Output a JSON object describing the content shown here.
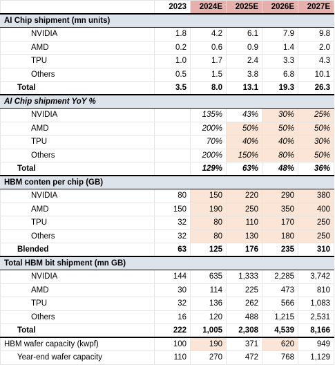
{
  "years": [
    {
      "label": "2023",
      "estimate": false
    },
    {
      "label": "2024E",
      "estimate": true
    },
    {
      "label": "2025E",
      "estimate": true
    },
    {
      "label": "2026E",
      "estimate": true
    },
    {
      "label": "2027E",
      "estimate": true
    }
  ],
  "sections": [
    {
      "title": "AI Chip shipment (mn units)",
      "items": [
        {
          "label": "NVIDIA",
          "values": [
            "1.8",
            "4.2",
            "6.1",
            "7.9",
            "9.8"
          ]
        },
        {
          "label": "AMD",
          "values": [
            "0.2",
            "0.6",
            "0.9",
            "1.4",
            "2.0"
          ]
        },
        {
          "label": "TPU",
          "values": [
            "1.0",
            "1.7",
            "2.4",
            "3.3",
            "4.3"
          ]
        },
        {
          "label": "Others",
          "values": [
            "0.5",
            "1.5",
            "3.8",
            "6.8",
            "10.1"
          ]
        }
      ],
      "total": {
        "label": "Total",
        "values": [
          "3.5",
          "8.0",
          "13.1",
          "19.3",
          "26.3"
        ]
      }
    },
    {
      "title": "AI Chip shipment YoY %",
      "items": [
        {
          "label": "NVIDIA",
          "values": [
            "",
            "135%",
            "43%",
            "30%",
            "25%"
          ]
        },
        {
          "label": "AMD",
          "values": [
            "",
            "200%",
            "50%",
            "50%",
            "50%"
          ]
        },
        {
          "label": "TPU",
          "values": [
            "",
            "70%",
            "40%",
            "40%",
            "30%"
          ]
        },
        {
          "label": "Others",
          "values": [
            "",
            "200%",
            "150%",
            "80%",
            "50%"
          ]
        }
      ],
      "total": {
        "label": "Total",
        "values": [
          "",
          "129%",
          "63%",
          "48%",
          "36%"
        ]
      }
    },
    {
      "title": "HBM conten per chip (GB)",
      "items": [
        {
          "label": "NVIDIA",
          "values": [
            "80",
            "150",
            "220",
            "290",
            "380"
          ]
        },
        {
          "label": "AMD",
          "values": [
            "150",
            "190",
            "250",
            "350",
            "400"
          ]
        },
        {
          "label": "TPU",
          "values": [
            "32",
            "80",
            "110",
            "170",
            "250"
          ]
        },
        {
          "label": "Others",
          "values": [
            "32",
            "80",
            "130",
            "180",
            "250"
          ]
        }
      ],
      "total": {
        "label": "Blended",
        "values": [
          "63",
          "125",
          "176",
          "235",
          "310"
        ]
      }
    },
    {
      "title": "Total HBM bit shipment (mn GB)",
      "items": [
        {
          "label": "NVIDIA",
          "values": [
            "144",
            "635",
            "1,333",
            "2,285",
            "3,742"
          ]
        },
        {
          "label": "AMD",
          "values": [
            "30",
            "114",
            "225",
            "473",
            "810"
          ]
        },
        {
          "label": "TPU",
          "values": [
            "32",
            "136",
            "262",
            "566",
            "1,083"
          ]
        },
        {
          "label": "Others",
          "values": [
            "16",
            "120",
            "488",
            "1,215",
            "2,531"
          ]
        }
      ],
      "total": {
        "label": "Total",
        "values": [
          "222",
          "1,005",
          "2,308",
          "4,539",
          "8,166"
        ]
      }
    }
  ],
  "capacity": [
    {
      "label": "HBM wafer capacity (kwpf)",
      "values": [
        "100",
        "190",
        "371",
        "620",
        "949"
      ]
    },
    {
      "label": "Year-end wafer capacity",
      "values": [
        "110",
        "270",
        "472",
        "768",
        "1,129"
      ]
    }
  ],
  "colors": {
    "section_band": "#dde3eb",
    "estimate_header": "#e6b1ad",
    "assumption_highlight": "#fbe5d6"
  }
}
